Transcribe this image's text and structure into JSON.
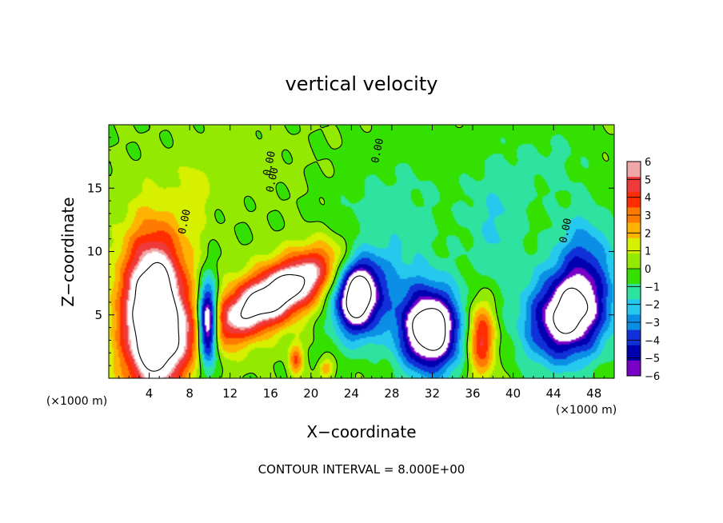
{
  "chart_data": {
    "type": "heatmap",
    "title": "vertical velocity",
    "xlabel": "X−coordinate",
    "ylabel": "Z−coordinate",
    "x_unit_left": "(×1000 m)",
    "x_unit_right": "(×1000 m)",
    "xlim": [
      0,
      50
    ],
    "ylim": [
      0,
      20
    ],
    "x_ticks": [
      4,
      8,
      12,
      16,
      20,
      24,
      28,
      32,
      36,
      40,
      44,
      48
    ],
    "y_ticks": [
      5,
      10,
      15
    ],
    "colorbar": {
      "levels": [
        6,
        5,
        4,
        3,
        2,
        1,
        0,
        -1,
        -2,
        -3,
        -4,
        -5,
        -6
      ],
      "labels": [
        "6",
        "5",
        "4",
        "3",
        "2",
        "1",
        "0",
        "−1",
        "−2",
        "−3",
        "−4",
        "−5",
        "−6"
      ],
      "colors": [
        "#f2a7a7",
        "#ee3a3a",
        "#ff2d00",
        "#ff7a00",
        "#ffb300",
        "#d6f000",
        "#93ea00",
        "#33e000",
        "#2ee3a0",
        "#26c9ee",
        "#0b8ee6",
        "#1131d8",
        "#0000b0",
        "#7a00c8"
      ],
      "saturation_color": "#ffffff"
    },
    "cells": [
      {
        "x": 4.5,
        "z": 5.0,
        "sx": 2.3,
        "sz": 4.5,
        "amp": 12
      },
      {
        "x": 9.8,
        "z": 4.2,
        "sx": 0.7,
        "sz": 2.2,
        "amp": -12
      },
      {
        "x": 16.5,
        "z": 6.6,
        "sx": 5.5,
        "sz": 1.6,
        "amp": 10,
        "tilt": 0.42
      },
      {
        "x": 18.5,
        "z": 1.5,
        "sx": 0.5,
        "sz": 0.9,
        "amp": 4
      },
      {
        "x": 21.5,
        "z": 0.8,
        "sx": 0.5,
        "sz": 0.5,
        "amp": 3
      },
      {
        "x": 24.5,
        "z": 6.5,
        "sx": 1.6,
        "sz": 2.2,
        "amp": -9
      },
      {
        "x": 31.8,
        "z": 3.8,
        "sx": 2.2,
        "sz": 2.4,
        "amp": -10
      },
      {
        "x": 36.8,
        "z": 3.2,
        "sx": 1.0,
        "sz": 2.1,
        "amp": 6
      },
      {
        "x": 45.5,
        "z": 5.0,
        "sx": 3.0,
        "sz": 2.5,
        "amp": -9,
        "tilt": 0.55
      },
      {
        "x": 8.5,
        "z": 14.5,
        "sx": 1.0,
        "sz": 2.2,
        "amp": 1.3
      },
      {
        "x": 26.0,
        "z": 9.0,
        "sx": 3.2,
        "sz": 3.5,
        "amp": -2.5
      },
      {
        "x": 38.5,
        "z": 12.0,
        "sx": 2.2,
        "sz": 4.0,
        "amp": -2.0
      },
      {
        "x": 47.0,
        "z": 10.0,
        "sx": 2.0,
        "sz": 2.5,
        "amp": -3.0
      },
      {
        "x": 30.0,
        "z": 14.0,
        "sx": 4.0,
        "sz": 4.0,
        "amp": -1.0
      },
      {
        "x": 13.0,
        "z": 17.0,
        "sx": 4.0,
        "sz": 2.5,
        "amp": 0.5
      },
      {
        "x": 44.0,
        "z": 17.0,
        "sx": 3.0,
        "sz": 2.5,
        "amp": -1.2
      }
    ],
    "contour_labels": [
      {
        "text": "0.00",
        "x": 7.8,
        "z": 12.3
      },
      {
        "text": "0.00",
        "x": 16.5,
        "z": 15.6
      },
      {
        "text": "0.00",
        "x": 16.2,
        "z": 16.9
      },
      {
        "text": "0.00",
        "x": 26.9,
        "z": 17.9
      },
      {
        "text": "0.00",
        "x": 45.5,
        "z": 11.6
      }
    ],
    "contour_interval": "CONTOUR INTERVAL = 8.000E+00"
  }
}
